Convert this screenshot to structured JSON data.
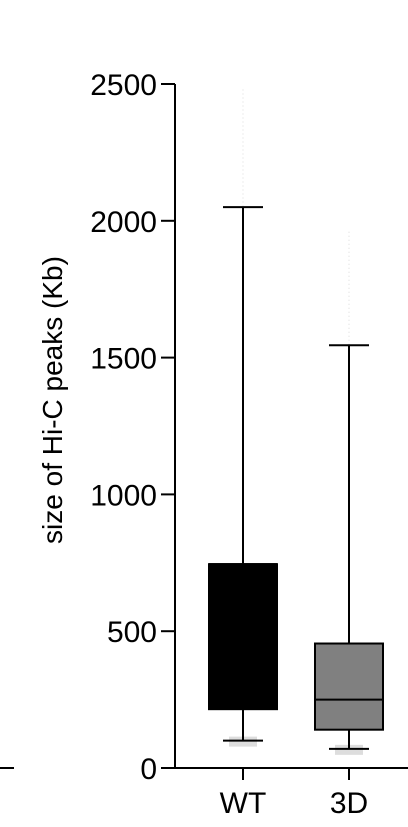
{
  "chart_data": {
    "type": "box",
    "ylabel": "size of Hi-C peaks (Kb)",
    "ylim": [
      0,
      2500
    ],
    "yticks": [
      0,
      500,
      1000,
      1500,
      2000,
      2500
    ],
    "ytick_labels": [
      "0",
      "500",
      "1000",
      "1500",
      "2000",
      "2500"
    ],
    "categories": [
      "WT",
      "3D"
    ],
    "grid": false,
    "legend": "none",
    "series": [
      {
        "category": "WT",
        "whisker_low": 100,
        "q1": 215,
        "median": 745,
        "q3": 745,
        "whisker_high": 2050,
        "color": "#000000",
        "outlier_max": 2480
      },
      {
        "category": "3D",
        "whisker_low": 70,
        "q1": 140,
        "median": 250,
        "q3": 455,
        "whisker_high": 1545,
        "color": "#808080",
        "outlier_max": 1960
      }
    ]
  }
}
